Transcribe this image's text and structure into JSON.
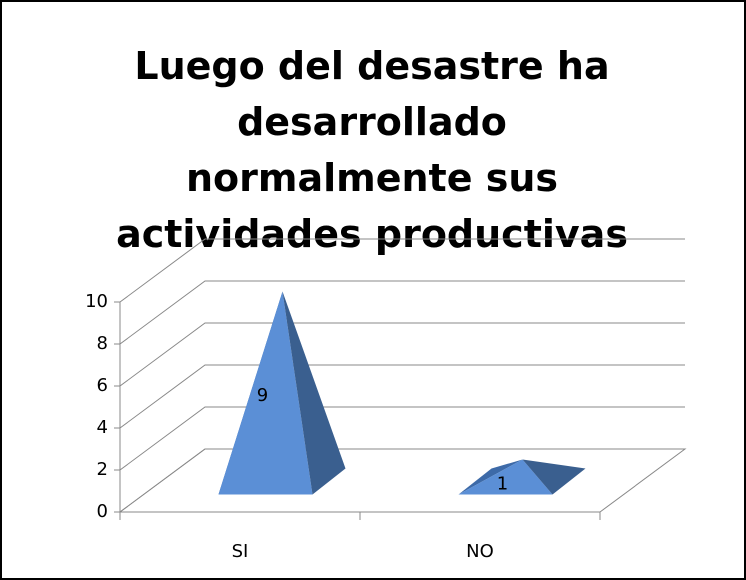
{
  "chart_data": {
    "type": "pyramid3d",
    "title": "Luego del desastre ha desarrollado normalmente sus actividades productivas",
    "categories": [
      "SI",
      "NO"
    ],
    "values": [
      9,
      1
    ],
    "color": "#5b8fd6",
    "ylim": [
      0,
      10
    ],
    "yticks": [
      0,
      2,
      4,
      6,
      8,
      10
    ],
    "grid": true
  }
}
